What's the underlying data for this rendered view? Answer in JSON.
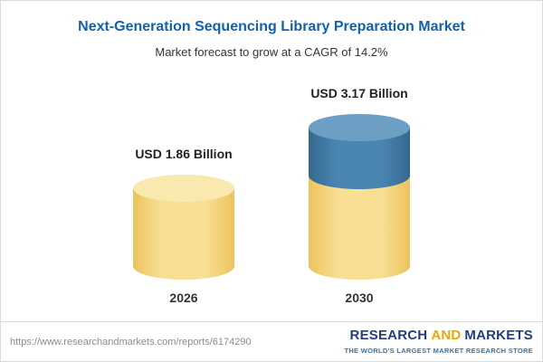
{
  "header": {
    "title": "Next-Generation Sequencing Library Preparation Market",
    "subtitle": "Market forecast to grow at a CAGR of 14.2%"
  },
  "chart_data": {
    "type": "bar",
    "categories": [
      "2026",
      "2030"
    ],
    "values": [
      1.86,
      3.17
    ],
    "value_labels": [
      "USD 1.86 Billion",
      "USD 3.17 Billion"
    ],
    "title": "Next-Generation Sequencing Library Preparation Market",
    "subtitle": "Market forecast to grow at a CAGR of 14.2%",
    "unit": "USD Billion",
    "cagr": "14.2%",
    "legend_position": "none",
    "grid": false,
    "colors": {
      "base_segment": "#f5d77d",
      "growth_segment": "#4079a5",
      "title_text": "#1261ab"
    },
    "notes": "2030 bar is stacked: yellow base equals 2026 value (1.86), blue top is growth to 3.17"
  },
  "footer": {
    "url": "https://www.researchandmarkets.com/reports/6174290",
    "brand": {
      "research": "RESEARCH",
      "and": "AND",
      "markets": "MARKETS",
      "tagline": "THE WORLD'S LARGEST MARKET RESEARCH STORE"
    }
  }
}
